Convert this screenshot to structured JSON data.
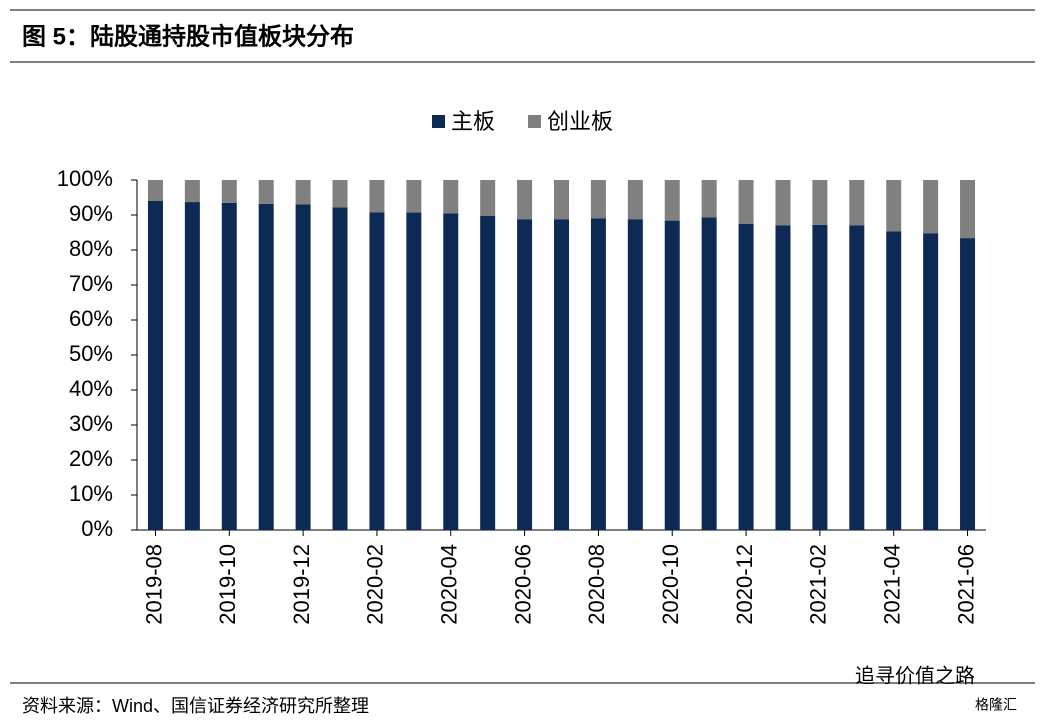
{
  "chart_data": {
    "type": "stacked_bar",
    "title": "图 5：陆股通持股市值板块分布",
    "source": "资料来源：Wind、国信证券经济研究所整理",
    "watermark": "追寻价值之路",
    "watermark_brand": "格隆汇",
    "categories": [
      "2019-08",
      null,
      "2019-10",
      null,
      "2019-12",
      null,
      "2020-02",
      null,
      "2020-04",
      null,
      "2020-06",
      null,
      "2020-08",
      null,
      "2020-10",
      null,
      "2020-12",
      null,
      "2021-02",
      null,
      "2021-04",
      null,
      "2021-06"
    ],
    "series": [
      {
        "name": "主板",
        "color": "#0d2a55",
        "values": [
          94,
          93.7,
          93.5,
          93.2,
          93,
          92.2,
          90.8,
          90.7,
          90.5,
          89.8,
          88.8,
          88.8,
          89,
          88.8,
          88.4,
          89.3,
          87.5,
          87,
          87.2,
          87,
          85.3,
          84.8,
          83.4
        ]
      },
      {
        "name": "创业板",
        "color": "#808080",
        "values": [
          6,
          6.3,
          6.5,
          6.8,
          7,
          7.8,
          9.2,
          9.3,
          9.5,
          10.2,
          11.2,
          11.2,
          11,
          11.2,
          11.6,
          10.7,
          12.5,
          13,
          12.8,
          13,
          14.7,
          15.2,
          16.6
        ]
      }
    ],
    "ylim": [
      0,
      100
    ],
    "yticks": [
      {
        "value": 0,
        "label": "0%"
      },
      {
        "value": 10,
        "label": "10%"
      },
      {
        "value": 20,
        "label": "20%"
      },
      {
        "value": 30,
        "label": "30%"
      },
      {
        "value": 40,
        "label": "40%"
      },
      {
        "value": 50,
        "label": "50%"
      },
      {
        "value": 60,
        "label": "60%"
      },
      {
        "value": 70,
        "label": "70%"
      },
      {
        "value": 80,
        "label": "80%"
      },
      {
        "value": 90,
        "label": "90%"
      },
      {
        "value": 100,
        "label": "100%"
      }
    ]
  }
}
